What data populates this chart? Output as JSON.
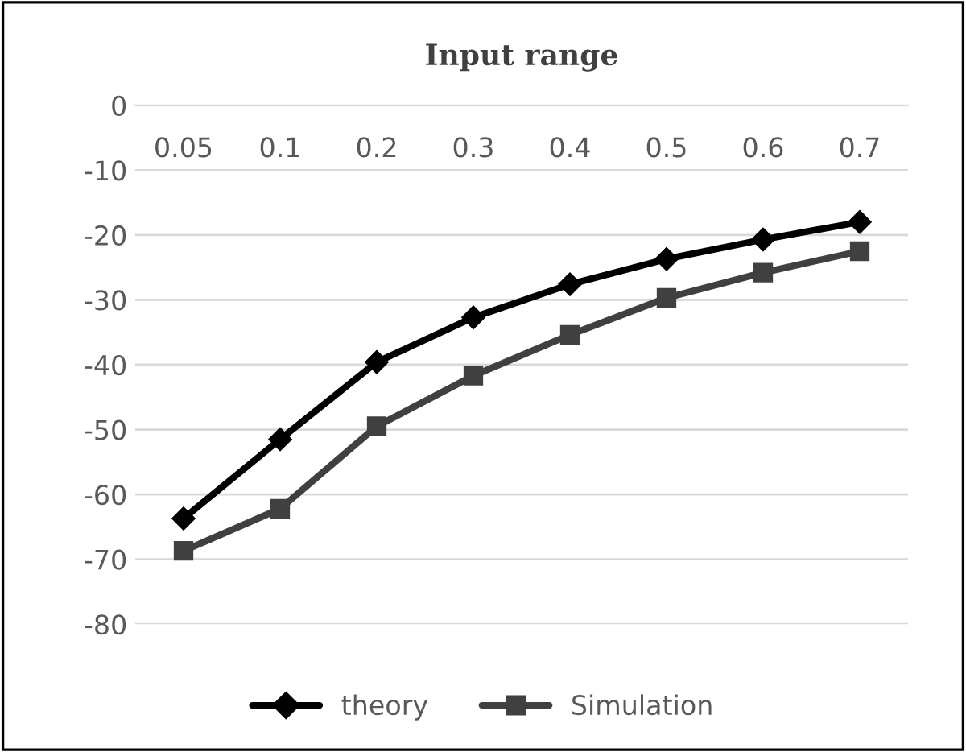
{
  "chart_data": {
    "type": "line",
    "title": "Input range",
    "categories": [
      "0.05",
      "0.1",
      "0.2",
      "0.3",
      "0.4",
      "0.5",
      "0.6",
      "0.7"
    ],
    "series": [
      {
        "name": "theory",
        "color": "#000000",
        "marker": "diamond",
        "values": [
          -63.7,
          -51.5,
          -39.6,
          -32.7,
          -27.6,
          -23.7,
          -20.7,
          -18
        ]
      },
      {
        "name": "Simulation",
        "color": "#404040",
        "marker": "square",
        "values": [
          -68.7,
          -62.2,
          -49.5,
          -41.7,
          -35.4,
          -29.7,
          -25.8,
          -22.5
        ]
      }
    ],
    "ylim": [
      -80,
      0
    ],
    "yticks": [
      0,
      -10,
      -20,
      -30,
      -40,
      -50,
      -60,
      -70,
      -80
    ],
    "grid": "y",
    "legend": "bottom",
    "line_style": "solid"
  }
}
